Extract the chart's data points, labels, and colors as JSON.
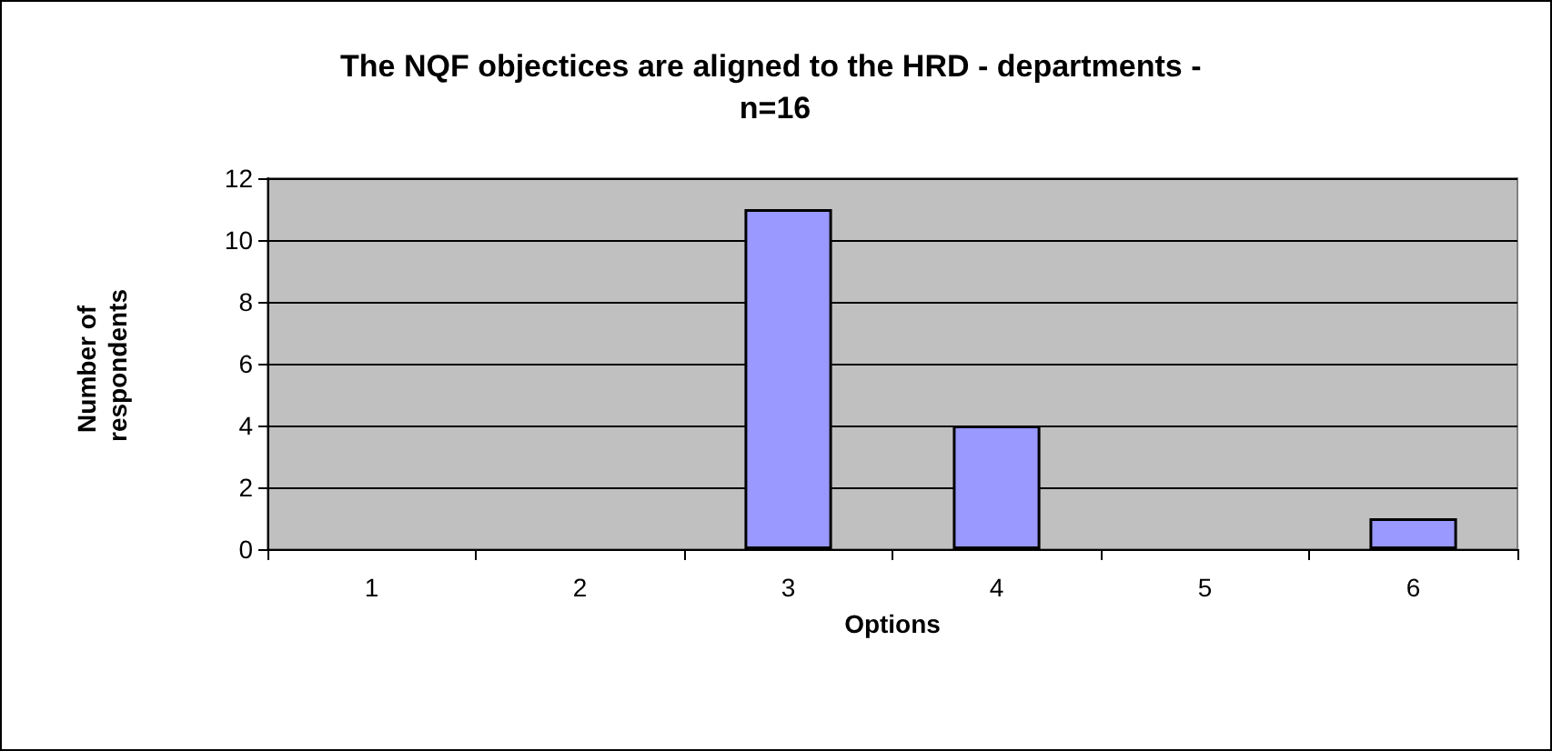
{
  "chart_data": {
    "type": "bar",
    "title": "The NQF objectices are aligned to the HRD - departments - n=16",
    "xlabel": "Options",
    "ylabel": "Number of respondents",
    "categories": [
      "1",
      "2",
      "3",
      "4",
      "5",
      "6"
    ],
    "values": [
      0,
      0,
      11,
      4,
      0,
      1
    ],
    "color": "#9999ff",
    "ylim": [
      0,
      12
    ],
    "yticks": [
      0,
      2,
      4,
      6,
      8,
      10,
      12
    ],
    "grid": "y"
  }
}
